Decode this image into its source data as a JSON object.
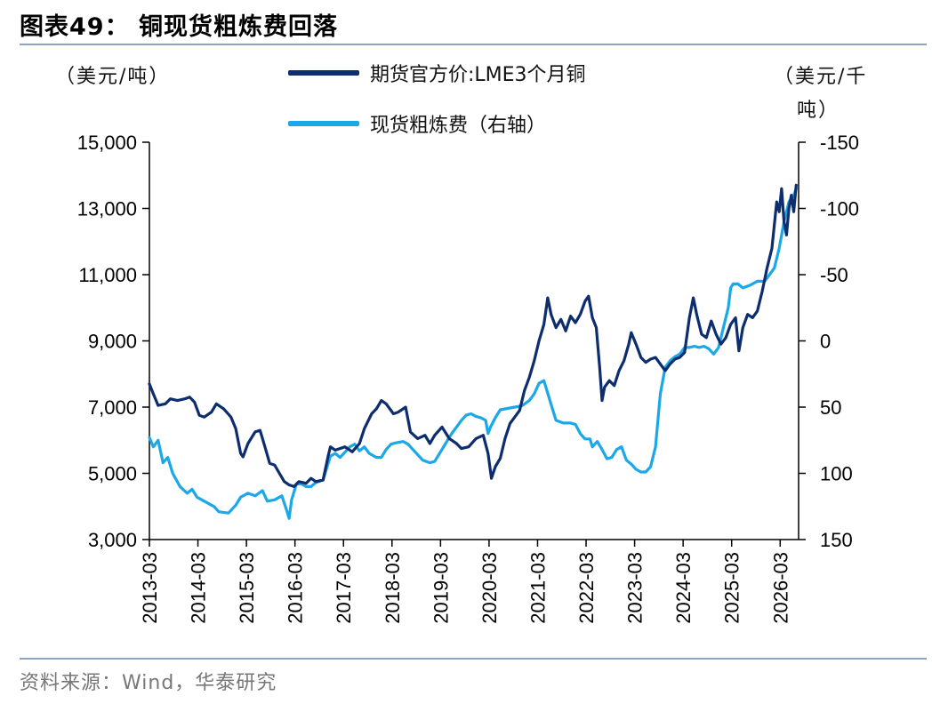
{
  "title": "图表49： 铜现货粗炼费回落",
  "source": "资料来源：Wind，华泰研究",
  "colors": {
    "lme_copper": "#0d2d6e",
    "spot_tc": "#1aa8e8",
    "rule": "#8da3c0"
  },
  "chart_data": {
    "type": "line",
    "left_unit": "（美元/吨）",
    "right_unit_line1": "（美元/千",
    "right_unit_line2": "吨）",
    "ylim_left": [
      3000,
      15000
    ],
    "ylim_right": [
      150,
      -150
    ],
    "right_axis_inverted": true,
    "left_ticks": [
      "15,000",
      "13,000",
      "11,000",
      "9,000",
      "7,000",
      "5,000",
      "3,000"
    ],
    "left_tick_values": [
      15000,
      13000,
      11000,
      9000,
      7000,
      5000,
      3000
    ],
    "right_ticks": [
      "-150",
      "-100",
      "-50",
      "0",
      "50",
      "100",
      "150"
    ],
    "right_tick_values": [
      -150,
      -100,
      -50,
      0,
      50,
      100,
      150
    ],
    "x_ticks": [
      "2013-03",
      "2014-03",
      "2015-03",
      "2016-03",
      "2017-03",
      "2018-03",
      "2019-03",
      "2020-03",
      "2021-03",
      "2022-03",
      "2023-03",
      "2024-03",
      "2025-03",
      "2026-03"
    ],
    "x_tick_values": [
      2013.17,
      2014.17,
      2015.17,
      2016.17,
      2017.17,
      2018.17,
      2019.17,
      2020.17,
      2021.17,
      2022.17,
      2023.17,
      2024.17,
      2025.17,
      2026.17
    ],
    "xlim": [
      2013.17,
      2026.55
    ],
    "series": [
      {
        "name": "期货官方价:LME3个月铜",
        "axis": "left",
        "points": [
          [
            2013.17,
            7700
          ],
          [
            2013.25,
            7400
          ],
          [
            2013.35,
            7050
          ],
          [
            2013.5,
            7100
          ],
          [
            2013.6,
            7250
          ],
          [
            2013.75,
            7200
          ],
          [
            2013.9,
            7250
          ],
          [
            2014.0,
            7300
          ],
          [
            2014.1,
            7150
          ],
          [
            2014.2,
            6750
          ],
          [
            2014.3,
            6700
          ],
          [
            2014.45,
            6850
          ],
          [
            2014.55,
            7100
          ],
          [
            2014.7,
            6950
          ],
          [
            2014.85,
            6700
          ],
          [
            2014.95,
            6350
          ],
          [
            2015.05,
            5600
          ],
          [
            2015.1,
            5500
          ],
          [
            2015.2,
            5900
          ],
          [
            2015.35,
            6250
          ],
          [
            2015.45,
            6300
          ],
          [
            2015.55,
            5800
          ],
          [
            2015.65,
            5300
          ],
          [
            2015.75,
            5250
          ],
          [
            2015.85,
            5000
          ],
          [
            2015.95,
            4750
          ],
          [
            2016.05,
            4650
          ],
          [
            2016.15,
            4600
          ],
          [
            2016.25,
            4750
          ],
          [
            2016.4,
            4700
          ],
          [
            2016.5,
            4850
          ],
          [
            2016.6,
            4750
          ],
          [
            2016.75,
            4800
          ],
          [
            2016.85,
            5500
          ],
          [
            2016.9,
            5800
          ],
          [
            2017.0,
            5700
          ],
          [
            2017.2,
            5800
          ],
          [
            2017.35,
            5650
          ],
          [
            2017.5,
            5900
          ],
          [
            2017.6,
            6350
          ],
          [
            2017.75,
            6800
          ],
          [
            2017.85,
            6950
          ],
          [
            2017.95,
            7200
          ],
          [
            2018.05,
            7100
          ],
          [
            2018.2,
            6800
          ],
          [
            2018.3,
            6850
          ],
          [
            2018.45,
            7000
          ],
          [
            2018.55,
            6250
          ],
          [
            2018.7,
            6050
          ],
          [
            2018.85,
            6150
          ],
          [
            2018.95,
            5900
          ],
          [
            2019.05,
            6150
          ],
          [
            2019.2,
            6400
          ],
          [
            2019.35,
            6050
          ],
          [
            2019.5,
            5900
          ],
          [
            2019.6,
            5750
          ],
          [
            2019.75,
            5800
          ],
          [
            2019.9,
            6050
          ],
          [
            2020.05,
            6150
          ],
          [
            2020.15,
            5600
          ],
          [
            2020.22,
            4850
          ],
          [
            2020.3,
            5200
          ],
          [
            2020.4,
            5450
          ],
          [
            2020.5,
            6050
          ],
          [
            2020.6,
            6500
          ],
          [
            2020.7,
            6700
          ],
          [
            2020.8,
            6900
          ],
          [
            2020.9,
            7500
          ],
          [
            2021.0,
            7900
          ],
          [
            2021.1,
            8400
          ],
          [
            2021.2,
            9000
          ],
          [
            2021.3,
            9500
          ],
          [
            2021.38,
            10300
          ],
          [
            2021.45,
            9800
          ],
          [
            2021.55,
            9400
          ],
          [
            2021.65,
            9650
          ],
          [
            2021.75,
            9300
          ],
          [
            2021.85,
            9750
          ],
          [
            2021.95,
            9550
          ],
          [
            2022.05,
            9800
          ],
          [
            2022.15,
            10200
          ],
          [
            2022.22,
            10350
          ],
          [
            2022.3,
            9700
          ],
          [
            2022.38,
            9400
          ],
          [
            2022.45,
            8200
          ],
          [
            2022.5,
            7200
          ],
          [
            2022.55,
            7600
          ],
          [
            2022.65,
            7800
          ],
          [
            2022.75,
            7650
          ],
          [
            2022.85,
            8100
          ],
          [
            2022.95,
            8400
          ],
          [
            2023.05,
            8900
          ],
          [
            2023.1,
            9250
          ],
          [
            2023.2,
            8900
          ],
          [
            2023.3,
            8500
          ],
          [
            2023.4,
            8350
          ],
          [
            2023.5,
            8450
          ],
          [
            2023.6,
            8500
          ],
          [
            2023.7,
            8300
          ],
          [
            2023.8,
            8100
          ],
          [
            2023.9,
            8300
          ],
          [
            2024.0,
            8450
          ],
          [
            2024.1,
            8500
          ],
          [
            2024.2,
            8650
          ],
          [
            2024.3,
            9700
          ],
          [
            2024.38,
            10300
          ],
          [
            2024.45,
            9800
          ],
          [
            2024.55,
            9200
          ],
          [
            2024.65,
            9100
          ],
          [
            2024.75,
            9600
          ],
          [
            2024.85,
            9200
          ],
          [
            2024.95,
            8900
          ],
          [
            2025.05,
            9100
          ],
          [
            2025.15,
            9500
          ],
          [
            2025.25,
            9700
          ],
          [
            2025.32,
            8700
          ],
          [
            2025.4,
            9400
          ],
          [
            2025.5,
            9800
          ],
          [
            2025.6,
            9700
          ],
          [
            2025.7,
            9900
          ],
          [
            2025.8,
            10500
          ],
          [
            2025.9,
            11200
          ],
          [
            2026.0,
            11800
          ],
          [
            2026.05,
            12500
          ],
          [
            2026.1,
            13200
          ],
          [
            2026.15,
            12900
          ],
          [
            2026.2,
            13600
          ],
          [
            2026.25,
            12600
          ],
          [
            2026.3,
            12200
          ],
          [
            2026.35,
            13000
          ],
          [
            2026.4,
            13400
          ],
          [
            2026.45,
            12900
          ],
          [
            2026.5,
            13700
          ]
        ]
      },
      {
        "name": "现货粗炼费（右轴）",
        "axis": "right",
        "points": [
          [
            2013.17,
            73
          ],
          [
            2013.25,
            80
          ],
          [
            2013.35,
            75
          ],
          [
            2013.45,
            92
          ],
          [
            2013.55,
            88
          ],
          [
            2013.65,
            100
          ],
          [
            2013.8,
            110
          ],
          [
            2013.95,
            115
          ],
          [
            2014.05,
            112
          ],
          [
            2014.15,
            118
          ],
          [
            2014.25,
            120
          ],
          [
            2014.35,
            122
          ],
          [
            2014.5,
            125
          ],
          [
            2014.6,
            129
          ],
          [
            2014.8,
            130
          ],
          [
            2014.95,
            124
          ],
          [
            2015.05,
            118
          ],
          [
            2015.2,
            115
          ],
          [
            2015.35,
            117
          ],
          [
            2015.5,
            113
          ],
          [
            2015.6,
            121
          ],
          [
            2015.75,
            120
          ],
          [
            2015.9,
            117
          ],
          [
            2016.0,
            128
          ],
          [
            2016.05,
            134
          ],
          [
            2016.1,
            120
          ],
          [
            2016.2,
            108
          ],
          [
            2016.3,
            108
          ],
          [
            2016.4,
            110
          ],
          [
            2016.5,
            110
          ],
          [
            2016.6,
            107
          ],
          [
            2016.75,
            105
          ],
          [
            2016.9,
            87
          ],
          [
            2017.0,
            85
          ],
          [
            2017.1,
            88
          ],
          [
            2017.2,
            84
          ],
          [
            2017.3,
            80
          ],
          [
            2017.4,
            78
          ],
          [
            2017.5,
            83
          ],
          [
            2017.6,
            80
          ],
          [
            2017.7,
            85
          ],
          [
            2017.85,
            88
          ],
          [
            2017.95,
            88
          ],
          [
            2018.05,
            82
          ],
          [
            2018.15,
            78
          ],
          [
            2018.25,
            77
          ],
          [
            2018.4,
            76
          ],
          [
            2018.5,
            78
          ],
          [
            2018.6,
            82
          ],
          [
            2018.7,
            86
          ],
          [
            2018.8,
            90
          ],
          [
            2018.95,
            92
          ],
          [
            2019.05,
            91
          ],
          [
            2019.2,
            82
          ],
          [
            2019.3,
            76
          ],
          [
            2019.4,
            70
          ],
          [
            2019.5,
            65
          ],
          [
            2019.6,
            60
          ],
          [
            2019.7,
            56
          ],
          [
            2019.8,
            55
          ],
          [
            2019.9,
            57
          ],
          [
            2020.0,
            58
          ],
          [
            2020.1,
            60
          ],
          [
            2020.15,
            70
          ],
          [
            2020.2,
            65
          ],
          [
            2020.3,
            58
          ],
          [
            2020.4,
            52
          ],
          [
            2020.55,
            51
          ],
          [
            2020.7,
            50
          ],
          [
            2020.85,
            49
          ],
          [
            2021.0,
            45
          ],
          [
            2021.1,
            40
          ],
          [
            2021.2,
            32
          ],
          [
            2021.3,
            30
          ],
          [
            2021.35,
            36
          ],
          [
            2021.45,
            48
          ],
          [
            2021.55,
            60
          ],
          [
            2021.7,
            62
          ],
          [
            2021.85,
            62
          ],
          [
            2021.95,
            63
          ],
          [
            2022.05,
            70
          ],
          [
            2022.15,
            74
          ],
          [
            2022.25,
            74
          ],
          [
            2022.3,
            80
          ],
          [
            2022.4,
            76
          ],
          [
            2022.5,
            82
          ],
          [
            2022.6,
            89
          ],
          [
            2022.7,
            88
          ],
          [
            2022.8,
            82
          ],
          [
            2022.9,
            80
          ],
          [
            2023.0,
            90
          ],
          [
            2023.1,
            93
          ],
          [
            2023.2,
            97
          ],
          [
            2023.3,
            99
          ],
          [
            2023.4,
            99
          ],
          [
            2023.5,
            95
          ],
          [
            2023.6,
            80
          ],
          [
            2023.65,
            60
          ],
          [
            2023.7,
            40
          ],
          [
            2023.8,
            20
          ],
          [
            2023.9,
            15
          ],
          [
            2024.0,
            12
          ],
          [
            2024.1,
            10
          ],
          [
            2024.2,
            5
          ],
          [
            2024.3,
            5
          ],
          [
            2024.4,
            4
          ],
          [
            2024.5,
            5
          ],
          [
            2024.6,
            4
          ],
          [
            2024.7,
            6
          ],
          [
            2024.8,
            10
          ],
          [
            2024.9,
            5
          ],
          [
            2025.0,
            -10
          ],
          [
            2025.1,
            -25
          ],
          [
            2025.15,
            -40
          ],
          [
            2025.2,
            -43
          ],
          [
            2025.3,
            -43
          ],
          [
            2025.4,
            -40
          ],
          [
            2025.55,
            -42
          ],
          [
            2025.7,
            -45
          ],
          [
            2025.85,
            -45
          ],
          [
            2025.95,
            -50
          ],
          [
            2026.05,
            -55
          ],
          [
            2026.15,
            -70
          ],
          [
            2026.25,
            -90
          ],
          [
            2026.35,
            -105
          ],
          [
            2026.45,
            -110
          ],
          [
            2026.5,
            -115
          ]
        ]
      }
    ]
  }
}
